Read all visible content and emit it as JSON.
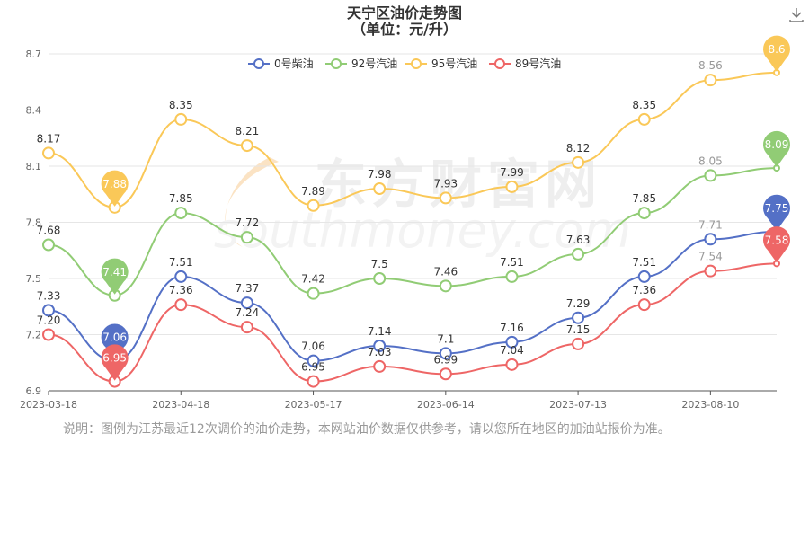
{
  "title": "天宁区油价走势图",
  "subtitle": "（单位：元/升）",
  "note": "说明：图例为江苏最近12次调价的油价走势，本网站油价数据仅供参考，请以您所在地区的加油站报价为准。",
  "watermark_cn": "东方财富网",
  "watermark_en": "southmoney.com",
  "toolbar_icon": "download-icon",
  "chart_data": {
    "type": "line",
    "x_ticks": [
      "2023-03-18",
      "2023-04-18",
      "2023-05-17",
      "2023-06-14",
      "2023-07-13",
      "2023-08-10"
    ],
    "ylim": [
      6.9,
      8.7
    ],
    "y_ticks": [
      "6.9",
      "7.2",
      "7.5",
      "7.8",
      "8.1",
      "8.4",
      "8.7"
    ],
    "legend_position": "top-center",
    "grid": true,
    "smooth": true,
    "series": [
      {
        "name": "0号柴油",
        "color": "#5470c6",
        "values": [
          7.33,
          7.06,
          7.51,
          7.37,
          7.06,
          7.14,
          7.1,
          7.16,
          7.29,
          7.51,
          7.71,
          7.75
        ],
        "labels": [
          "7.33",
          "",
          "7.51",
          "7.37",
          "7.06",
          "7.14",
          "7.1",
          "7.16",
          "7.29",
          "7.51",
          "7.71",
          ""
        ],
        "min_pin": "7.06",
        "max_pin": "7.75"
      },
      {
        "name": "92号汽油",
        "color": "#91cc75",
        "values": [
          7.68,
          7.41,
          7.85,
          7.72,
          7.42,
          7.5,
          7.46,
          7.51,
          7.63,
          7.85,
          8.05,
          8.09
        ],
        "labels": [
          "7.68",
          "",
          "7.85",
          "7.72",
          "7.42",
          "7.5",
          "7.46",
          "7.51",
          "7.63",
          "7.85",
          "8.05",
          ""
        ],
        "min_pin": "7.41",
        "max_pin": "8.09"
      },
      {
        "name": "95号汽油",
        "color": "#fac858",
        "values": [
          8.17,
          7.88,
          8.35,
          8.21,
          7.89,
          7.98,
          7.93,
          7.99,
          8.12,
          8.35,
          8.56,
          8.6
        ],
        "labels": [
          "8.17",
          "",
          "8.35",
          "8.21",
          "7.89",
          "7.98",
          "7.93",
          "7.99",
          "8.12",
          "8.35",
          "8.56",
          ""
        ],
        "min_pin": "7.88",
        "max_pin": "8.6"
      },
      {
        "name": "89号汽油",
        "color": "#ee6666",
        "values": [
          7.2,
          6.95,
          7.36,
          7.24,
          6.95,
          7.03,
          6.99,
          7.04,
          7.15,
          7.36,
          7.54,
          7.58
        ],
        "labels": [
          "7.20",
          "",
          "7.36",
          "7.24",
          "6.95",
          "7.03",
          "6.99",
          "7.04",
          "7.15",
          "7.36",
          "7.54",
          ""
        ],
        "min_pin": "6.95",
        "max_pin": "7.58"
      }
    ]
  }
}
